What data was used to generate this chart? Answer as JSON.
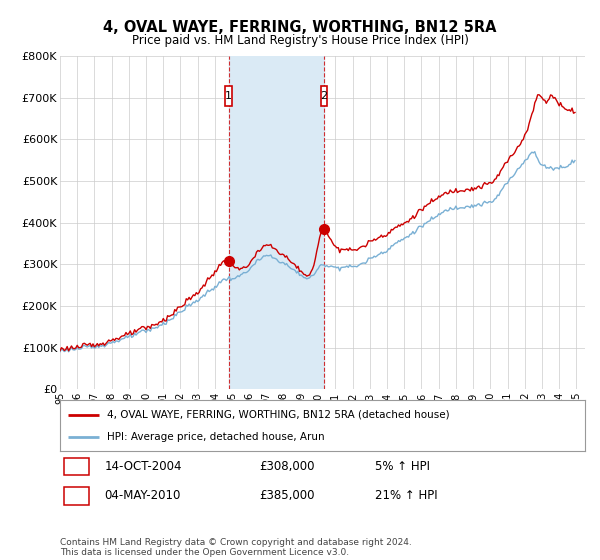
{
  "title": "4, OVAL WAYE, FERRING, WORTHING, BN12 5RA",
  "subtitle": "Price paid vs. HM Land Registry's House Price Index (HPI)",
  "ylim": [
    0,
    800000
  ],
  "yticks": [
    0,
    100000,
    200000,
    300000,
    400000,
    500000,
    600000,
    700000,
    800000
  ],
  "ytick_labels": [
    "£0",
    "£100K",
    "£200K",
    "£300K",
    "£400K",
    "£500K",
    "£600K",
    "£700K",
    "£800K"
  ],
  "x_start_year": 1995.0,
  "x_end_year": 2025.5,
  "purchase1_year": 2004.79,
  "purchase1_price": 308000,
  "purchase1_label": "14-OCT-2004",
  "purchase1_amount": "£308,000",
  "purchase1_hpi": "5% ↑ HPI",
  "purchase2_year": 2010.34,
  "purchase2_price": 385000,
  "purchase2_label": "04-MAY-2010",
  "purchase2_amount": "£385,000",
  "purchase2_hpi": "21% ↑ HPI",
  "line1_color": "#cc0000",
  "line2_color": "#7ab0d4",
  "shade_color": "#daeaf5",
  "marker_box_color": "#cc0000",
  "legend_label1": "4, OVAL WAYE, FERRING, WORTHING, BN12 5RA (detached house)",
  "legend_label2": "HPI: Average price, detached house, Arun",
  "footnote": "Contains HM Land Registry data © Crown copyright and database right 2024.\nThis data is licensed under the Open Government Licence v3.0.",
  "background_color": "#ffffff",
  "grid_color": "#cccccc"
}
